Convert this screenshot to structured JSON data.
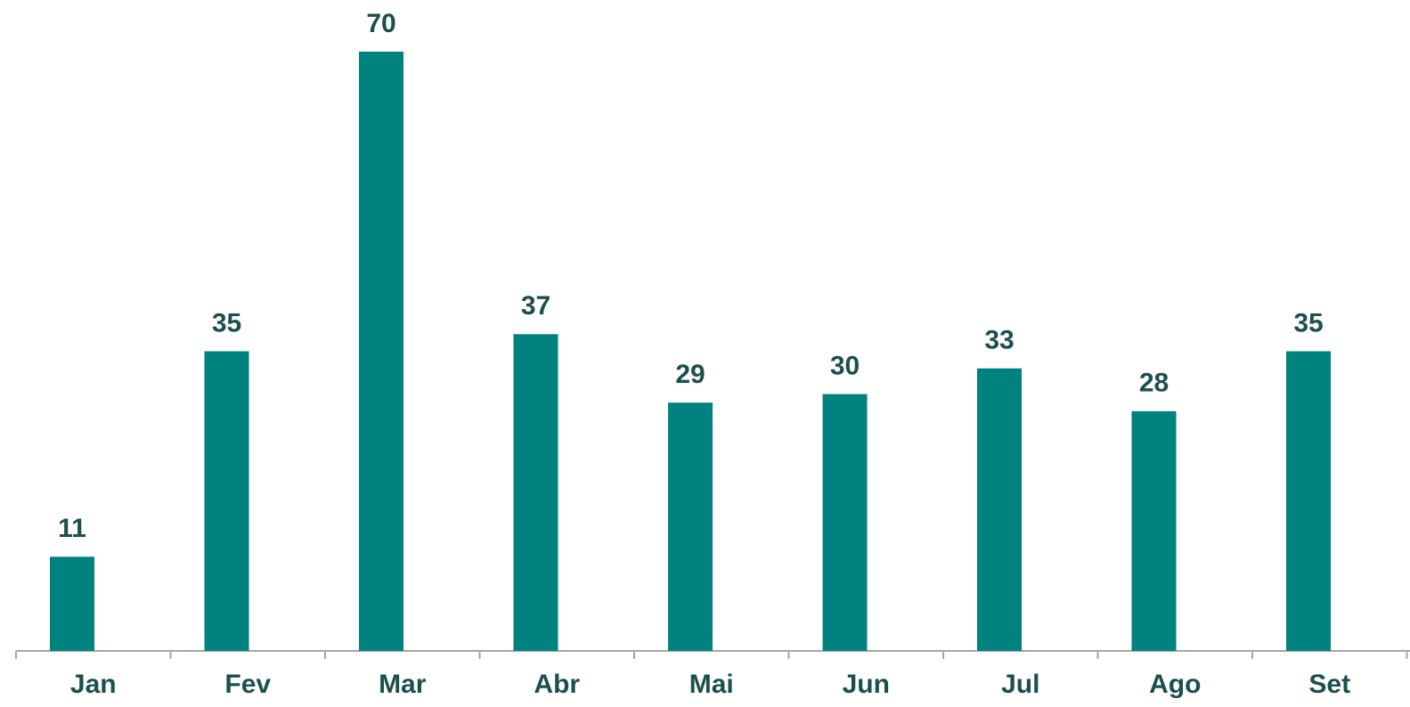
{
  "chart_data": {
    "type": "bar",
    "categories": [
      "Jan",
      "Fev",
      "Mar",
      "Abr",
      "Mai",
      "Jun",
      "Jul",
      "Ago",
      "Set"
    ],
    "values": [
      11,
      35,
      70,
      37,
      29,
      30,
      33,
      28,
      35
    ],
    "color": "#00827f"
  }
}
